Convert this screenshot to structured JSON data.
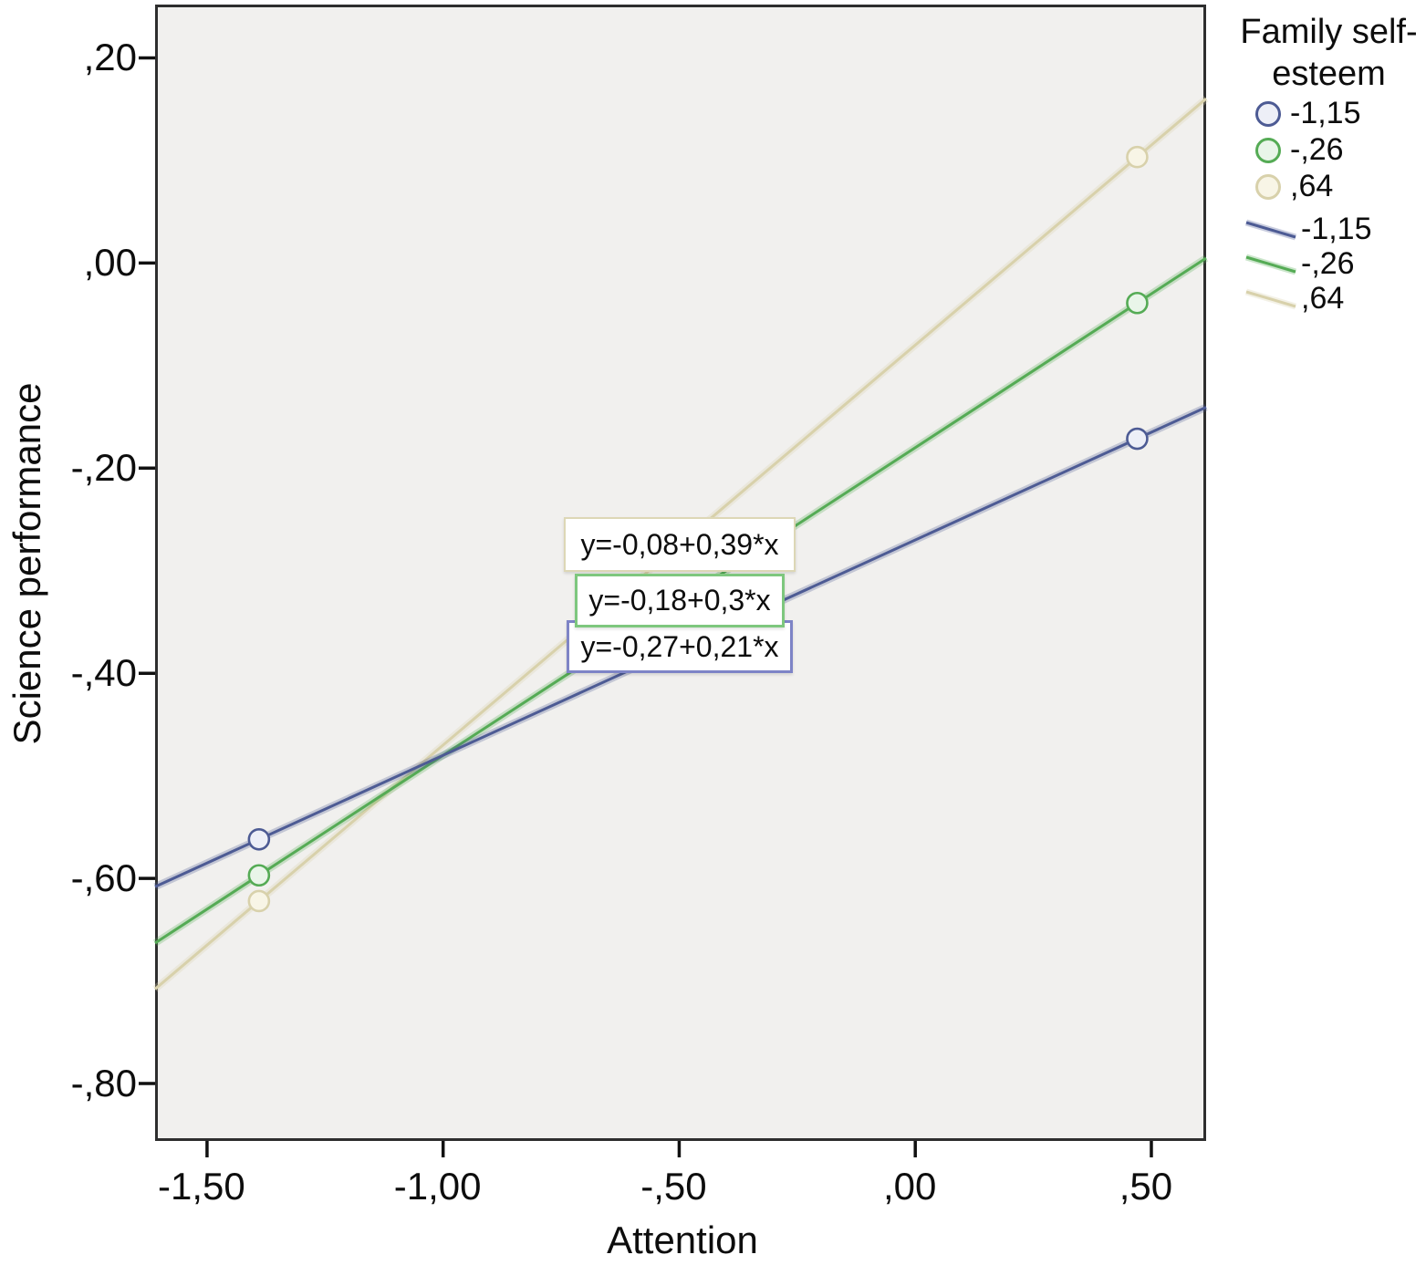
{
  "chart_data": {
    "type": "line",
    "description": "SPSS-style simple-slopes interaction plot: regression of Science performance on Attention at three levels of Family self-esteem",
    "xlabel": "Attention",
    "ylabel": "Science performance",
    "xlim": [
      -1.61,
      0.616
    ],
    "ylim": [
      -0.856,
      0.252
    ],
    "grid": false,
    "x_ticks": [
      -1.5,
      -1.0,
      -0.5,
      0.0,
      0.5
    ],
    "x_tick_labels": [
      "-1,50",
      "-1,00",
      "-,50",
      ",00",
      ",50"
    ],
    "y_ticks": [
      0.2,
      0.0,
      -0.2,
      -0.4,
      -0.6,
      -0.8
    ],
    "y_tick_labels": [
      ",20",
      ",00",
      "-,20",
      "-,40",
      "-,60",
      "-,80"
    ],
    "series": [
      {
        "name": "-1,15",
        "color": "#4d5b94",
        "marker_fill": "#edeff7",
        "box_border": "#7e84c6",
        "intercept": -0.27,
        "slope": 0.21,
        "equation": "y=-0,27+0,21*x",
        "marker_x": [
          -1.39,
          0.47
        ],
        "marker_points": [
          [
            -1.39,
            -0.56
          ],
          [
            0.47,
            -0.17
          ]
        ]
      },
      {
        "name": "-,26",
        "color": "#55ab55",
        "marker_fill": "#e9f5e9",
        "box_border": "#7ec77e",
        "intercept": -0.18,
        "slope": 0.3,
        "equation": "y=-0,18+0,3*x",
        "marker_x": [
          -1.39,
          0.47
        ],
        "marker_points": [
          [
            -1.39,
            -0.6
          ],
          [
            0.47,
            -0.04
          ]
        ]
      },
      {
        "name": ",64",
        "color": "#d8d1ab",
        "marker_fill": "#f8f5e6",
        "box_border": "#ddd7b6",
        "intercept": -0.08,
        "slope": 0.39,
        "equation": "y=-0,08+0,39*x",
        "marker_x": [
          -1.39,
          0.47
        ],
        "marker_points": [
          [
            -1.39,
            -0.62
          ],
          [
            0.47,
            0.1
          ]
        ]
      }
    ],
    "legend": {
      "title": "Family self-esteem",
      "position": "right",
      "marker_entries": [
        "-1,15",
        "-,26",
        ",64"
      ],
      "line_entries": [
        "-1,15",
        "-,26",
        ",64"
      ]
    }
  },
  "frame_color": "#2e2e2e",
  "plot_background": "#f1f0ee"
}
